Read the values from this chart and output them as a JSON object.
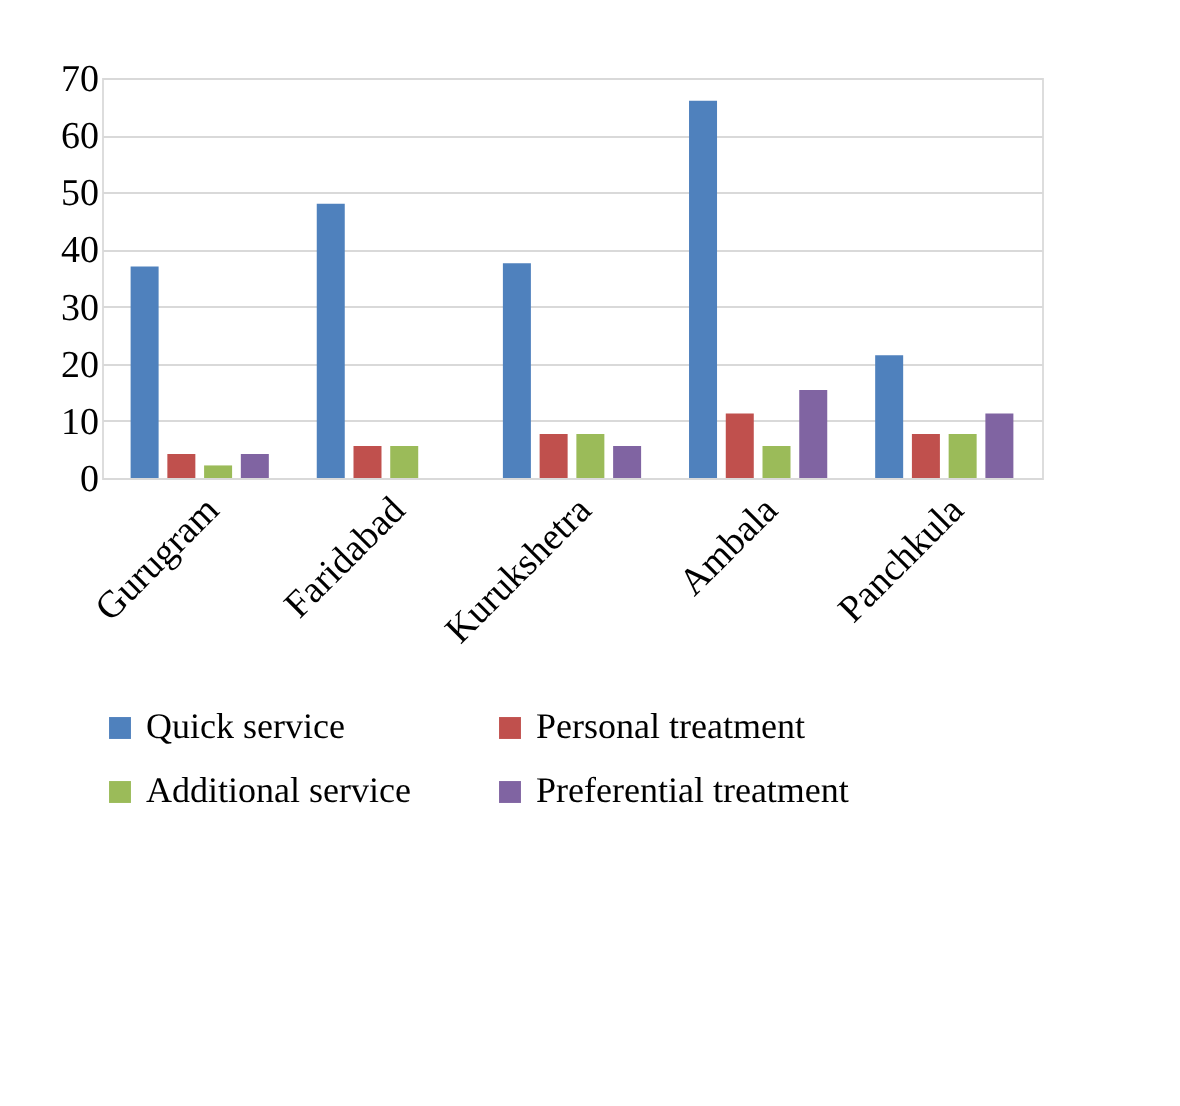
{
  "chart_data": {
    "type": "bar",
    "categories": [
      "Gurugram",
      "Faridabad",
      "Kurukshetra",
      "Ambala",
      "Panchkula"
    ],
    "series": [
      {
        "name": "Quick service",
        "color": "#4f81bd",
        "values": [
          37,
          48,
          37.6,
          66,
          21.5
        ]
      },
      {
        "name": "Personal treatment",
        "color": "#c0504d",
        "values": [
          4.2,
          5.6,
          7.7,
          11.3,
          7.7
        ]
      },
      {
        "name": "Additional service",
        "color": "#9bbb59",
        "values": [
          2.2,
          5.6,
          7.7,
          5.6,
          7.7
        ]
      },
      {
        "name": "Preferential treatment",
        "color": "#8064a2",
        "values": [
          4.2,
          null,
          5.6,
          15.4,
          11.3
        ]
      }
    ],
    "ylim": [
      0,
      70
    ],
    "yticks": [
      0,
      10,
      20,
      30,
      40,
      50,
      60,
      70
    ],
    "grid": "y",
    "legend": "bottom"
  }
}
